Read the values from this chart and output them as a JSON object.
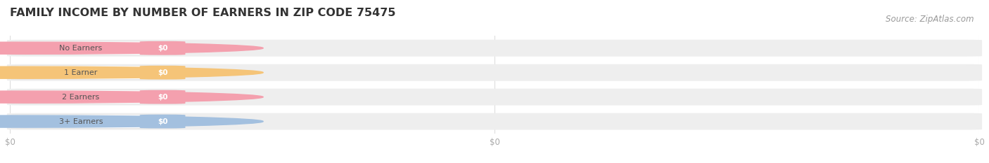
{
  "title": "FAMILY INCOME BY NUMBER OF EARNERS IN ZIP CODE 75475",
  "source_text": "Source: ZipAtlas.com",
  "categories": [
    "No Earners",
    "1 Earner",
    "2 Earners",
    "3+ Earners"
  ],
  "values": [
    0,
    0,
    0,
    0
  ],
  "bar_colors": [
    "#f4a0ae",
    "#f5c478",
    "#f4a0ae",
    "#a3c0df"
  ],
  "background_color": "#ffffff",
  "bar_bg_color": "#eeeeee",
  "title_fontsize": 11.5,
  "source_fontsize": 8.5,
  "tick_label_color": "#aaaaaa",
  "grid_color": "#dddddd",
  "title_color": "#333333"
}
